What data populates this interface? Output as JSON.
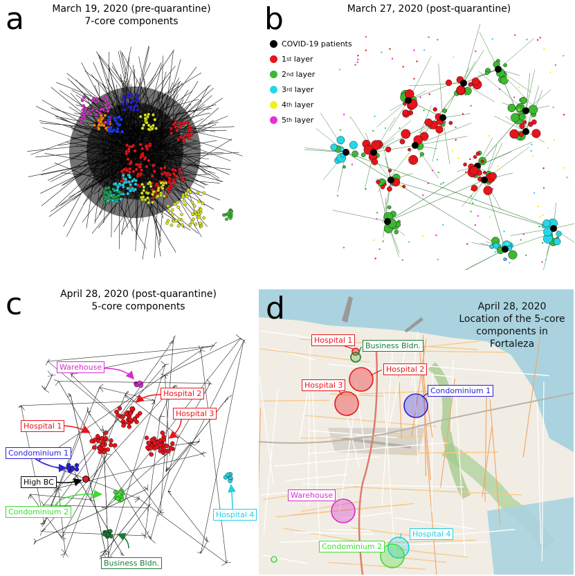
{
  "panels": {
    "a": {
      "letter": "a",
      "title_line1": "March 19, 2020 (pre-quarantine)",
      "title_line2": "7-core components"
    },
    "b": {
      "letter": "b",
      "title": "March 27, 2020 (post-quarantine)",
      "legend": [
        {
          "label": "COVID-19 patients",
          "color": "#000000"
        },
        {
          "label": "1st layer",
          "base": "1",
          "sup": "st",
          "rest": " layer",
          "color": "#e8141b"
        },
        {
          "label": "2nd layer",
          "base": "2",
          "sup": "nd",
          "rest": " layer",
          "color": "#3cb832"
        },
        {
          "label": "3rd layer",
          "base": "3",
          "sup": "rd",
          "rest": " layer",
          "color": "#22d8e8"
        },
        {
          "label": "4th layer",
          "base": "4",
          "sup": "th",
          "rest": " layer",
          "color": "#f2ef1a"
        },
        {
          "label": "5th layer",
          "base": "5",
          "sup": "th",
          "rest": " layer",
          "color": "#e82fd8"
        }
      ]
    },
    "c": {
      "letter": "c",
      "title_line1": "April 28, 2020 (post-quarantine)",
      "title_line2": "5-core components",
      "labels": {
        "warehouse": "Warehouse",
        "hospital2": "Hospital 2",
        "hospital3": "Hospital 3",
        "hospital1": "Hospital 1",
        "condominium1": "Condominium 1",
        "high_bc": "High BC",
        "condominium2": "Condominium 2",
        "hospital4": "Hospital 4",
        "business": "Business Bldn."
      }
    },
    "d": {
      "letter": "d",
      "title_line1": "April 28, 2020",
      "title_line2": "Location of the 5-core",
      "title_line3": "components in",
      "title_line4": "Fortaleza",
      "labels": {
        "hospital1": "Hospital 1",
        "business": "Business Bldn.",
        "hospital2": "Hospital 2",
        "hospital3": "Hospital 3",
        "condominium1": "Condominium 1",
        "warehouse": "Warehouse",
        "hospital4": "Hospital 4",
        "condominium2": "Condominium 2"
      }
    }
  },
  "colors": {
    "red": "#e8141b",
    "green": "#3cb832",
    "blue": "#2a1fd6",
    "magenta": "#d42fc9",
    "cyan": "#22cfe0",
    "darkgreen": "#1a7a34",
    "yellow": "#d4e21a"
  }
}
